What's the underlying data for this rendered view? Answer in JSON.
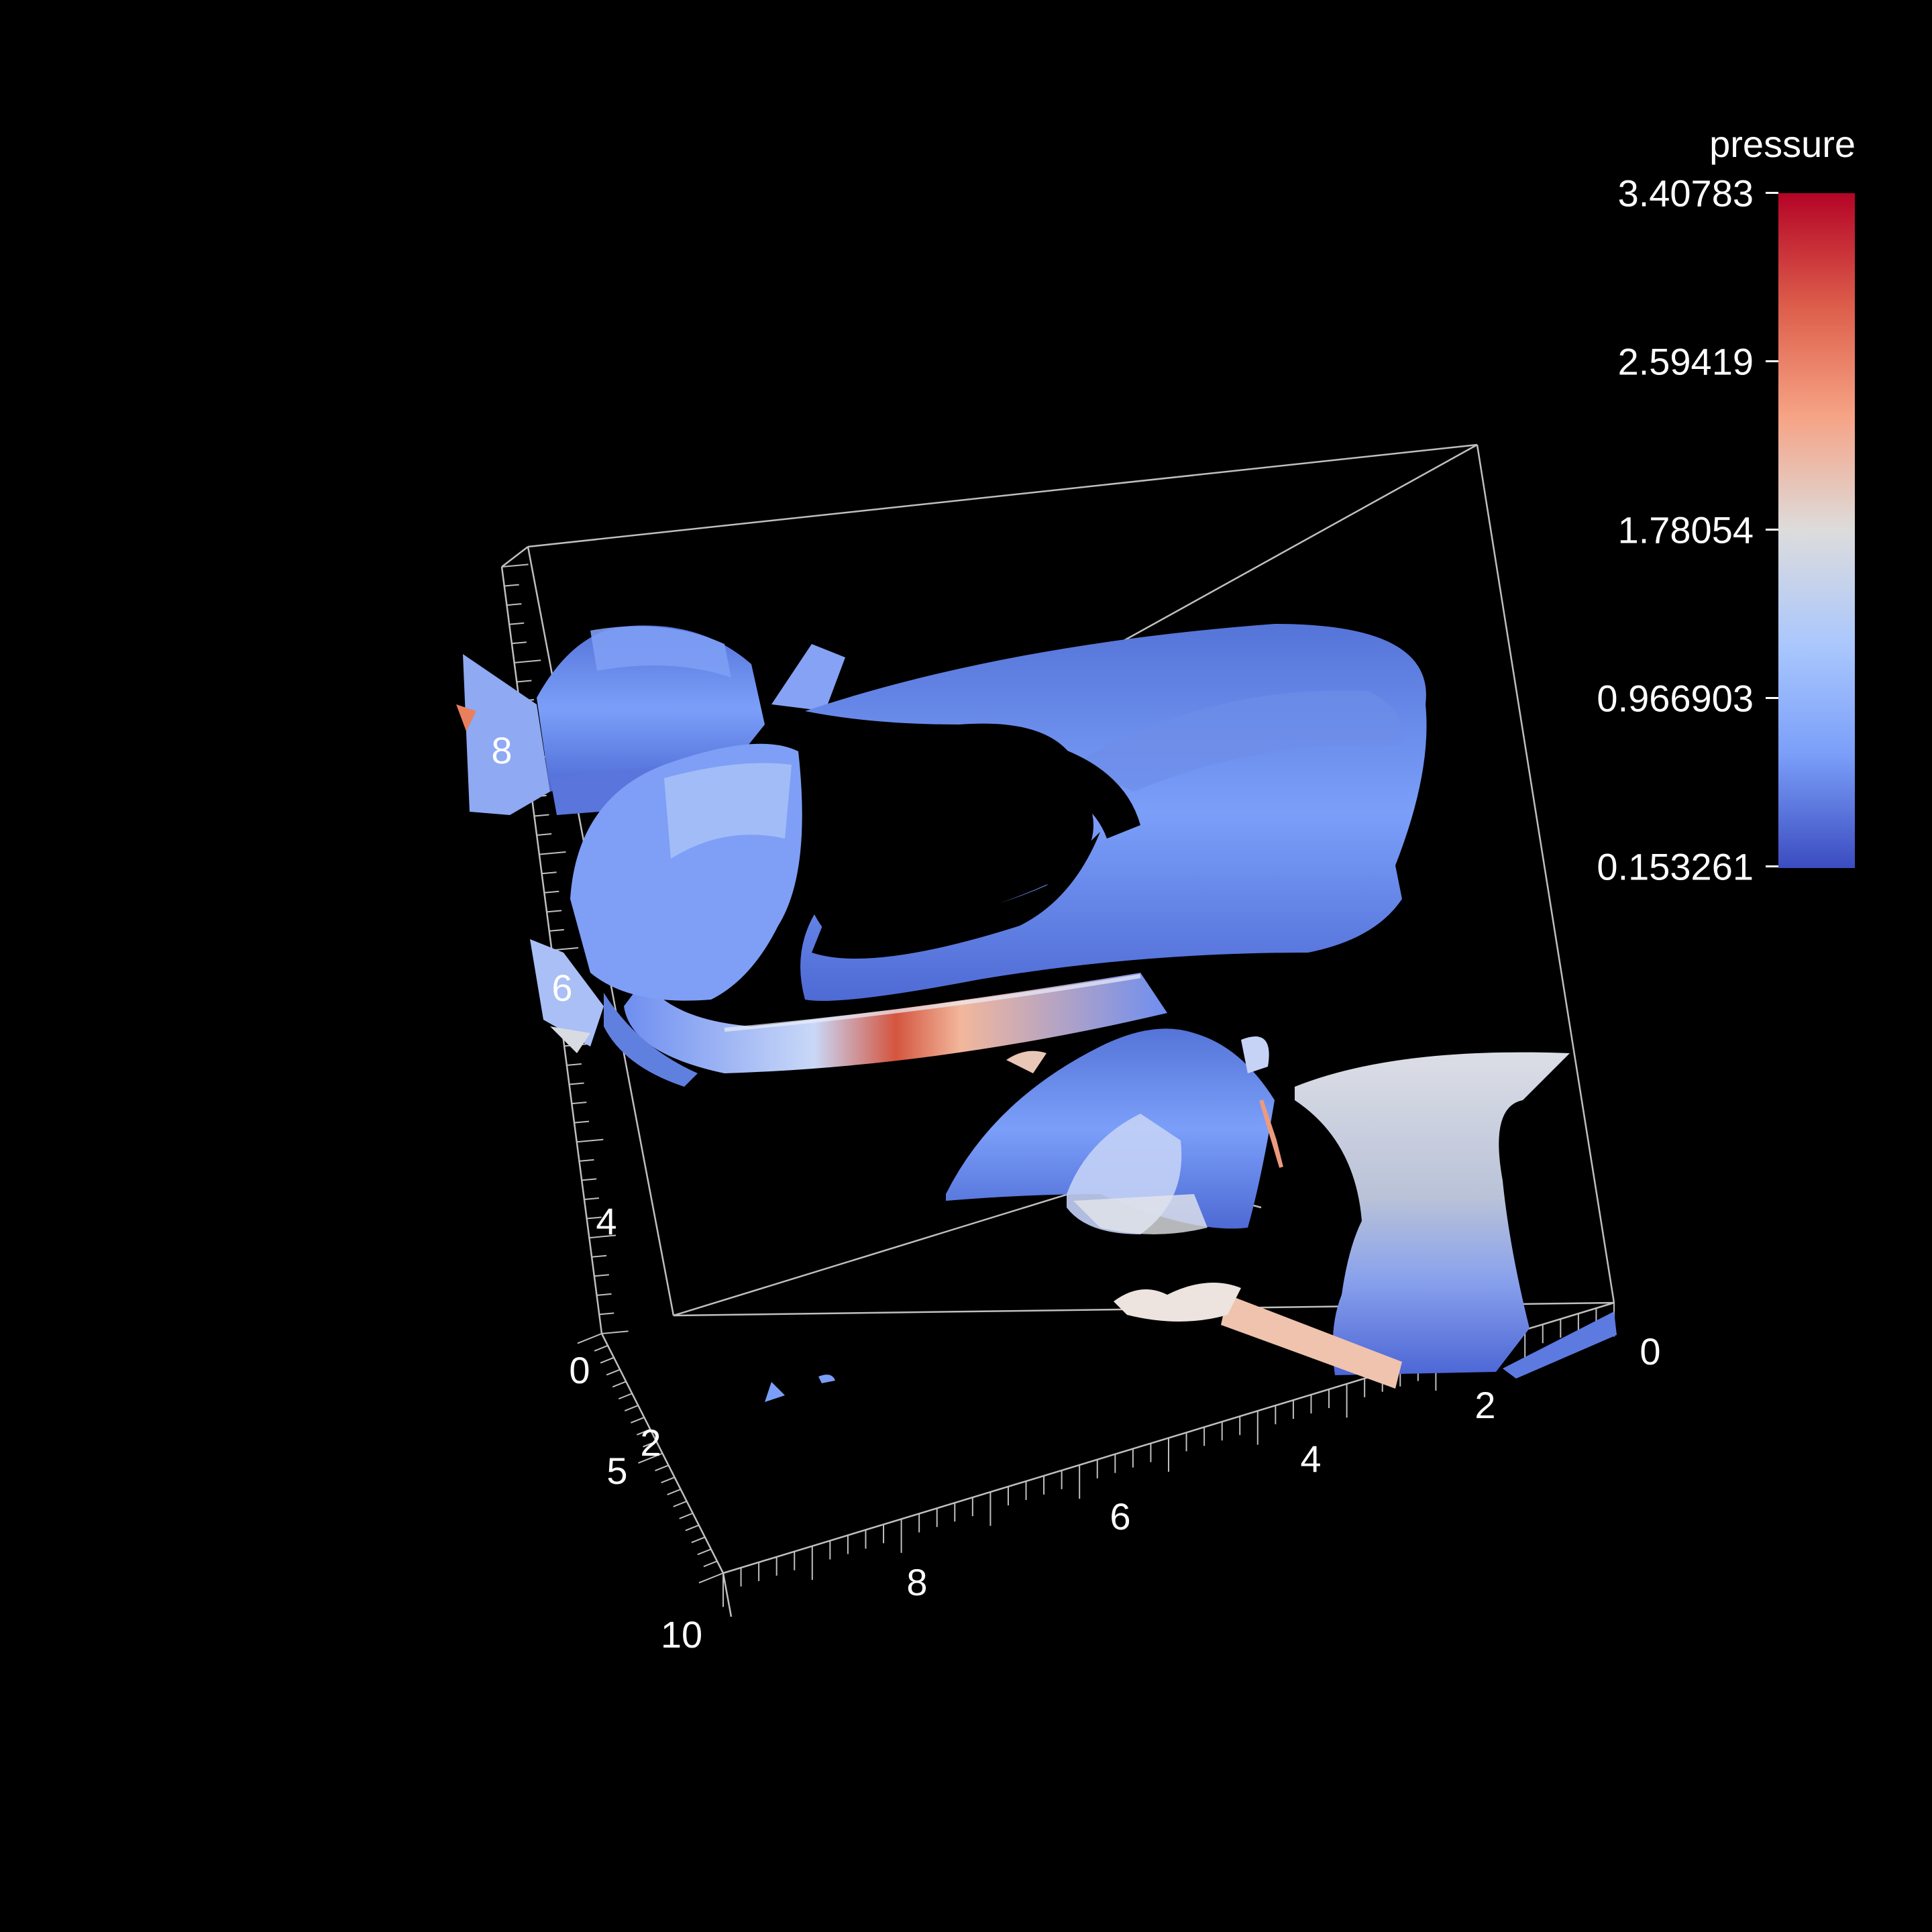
{
  "colorbar": {
    "title": "pressure",
    "ticks": [
      "3.40783",
      "2.59419",
      "1.78054",
      "0.966903",
      "0.153261"
    ],
    "min": 0.153261,
    "max": 3.40783,
    "colormap": [
      "#3b4cc0",
      "#7b9ff9",
      "#aac7fd",
      "#dddcdc",
      "#f6a385",
      "#dd5f4b",
      "#b40426"
    ]
  },
  "axes": {
    "vertical_ticks": [
      "4",
      "6",
      "8"
    ],
    "front_axis_ticks": [
      "0",
      "2",
      "4",
      "6",
      "8"
    ],
    "left_axis_ticks": [
      "0",
      "5",
      "10"
    ],
    "mixed_tick": "2"
  },
  "colors": {
    "background": "#000000",
    "axis_lines": "#bfbfbf",
    "surface_low": "#3b4cc0",
    "surface_high": "#b40426"
  }
}
